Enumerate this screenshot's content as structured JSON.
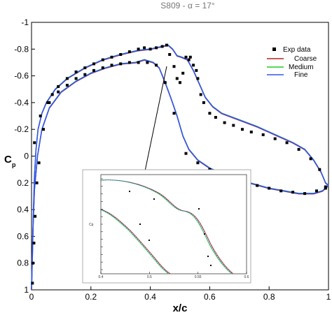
{
  "chart_data": {
    "type": "line",
    "title": "S809 -   α = 17°",
    "xlabel": "x/c",
    "ylabel": "Cp",
    "ylabel_main": "C",
    "ylabel_sub": "p",
    "xlim": [
      0,
      1
    ],
    "ylim": [
      -1,
      1
    ],
    "y_inverted": true,
    "x_ticks": [
      "0",
      "0.2",
      "0.4",
      "0.6",
      "0.8",
      "1"
    ],
    "y_ticks": [
      "-1",
      "-0.8",
      "-0.6",
      "-0.4",
      "-0.2",
      "0",
      "0.2",
      "0.4",
      "0.6",
      "0.8",
      "1"
    ],
    "legend_position": "top-right",
    "legend": [
      {
        "name": "Exp data",
        "color": "#000000",
        "marker": "square"
      },
      {
        "name": "Coarse",
        "color": "#b22222",
        "marker": "line"
      },
      {
        "name": "Medium",
        "color": "#22cc22",
        "marker": "line"
      },
      {
        "name": "Fine",
        "color": "#3355ee",
        "marker": "line"
      }
    ],
    "series": [
      {
        "name": "Exp data",
        "suction_points": [
          [
            0.003,
            0.95
          ],
          [
            0.005,
            0.8
          ],
          [
            0.008,
            0.65
          ],
          [
            0.012,
            0.45
          ],
          [
            0.018,
            0.2
          ],
          [
            0.025,
            0.05
          ],
          [
            0.04,
            -0.2
          ],
          [
            0.055,
            -0.4
          ],
          [
            0.07,
            -0.46
          ],
          [
            0.09,
            -0.52
          ],
          [
            0.12,
            -0.58
          ],
          [
            0.15,
            -0.63
          ],
          [
            0.18,
            -0.66
          ],
          [
            0.21,
            -0.69
          ],
          [
            0.24,
            -0.72
          ],
          [
            0.27,
            -0.74
          ],
          [
            0.3,
            -0.76
          ],
          [
            0.33,
            -0.78
          ],
          [
            0.36,
            -0.8
          ],
          [
            0.38,
            -0.81
          ],
          [
            0.4,
            -0.8
          ],
          [
            0.42,
            -0.81
          ],
          [
            0.44,
            -0.82
          ],
          [
            0.455,
            -0.83
          ],
          [
            0.465,
            -0.76
          ],
          [
            0.48,
            -0.67
          ],
          [
            0.49,
            -0.58
          ],
          [
            0.5,
            -0.55
          ],
          [
            0.51,
            -0.62
          ],
          [
            0.52,
            -0.74
          ],
          [
            0.53,
            -0.72
          ],
          [
            0.535,
            -0.74
          ],
          [
            0.545,
            -0.68
          ],
          [
            0.555,
            -0.64
          ],
          [
            0.56,
            -0.58
          ],
          [
            0.57,
            -0.46
          ],
          [
            0.58,
            -0.4
          ],
          [
            0.6,
            -0.32
          ],
          [
            0.62,
            -0.29
          ],
          [
            0.65,
            -0.25
          ],
          [
            0.68,
            -0.23
          ],
          [
            0.71,
            -0.2
          ],
          [
            0.74,
            -0.18
          ],
          [
            0.78,
            -0.16
          ],
          [
            0.82,
            -0.13
          ],
          [
            0.86,
            -0.1
          ],
          [
            0.9,
            -0.05
          ],
          [
            0.94,
            0.02
          ],
          [
            0.97,
            0.1
          ],
          [
            0.99,
            0.23
          ]
        ],
        "pressure_points": [
          [
            0.01,
            -0.1
          ],
          [
            0.03,
            -0.3
          ],
          [
            0.06,
            -0.4
          ],
          [
            0.09,
            -0.48
          ],
          [
            0.12,
            -0.53
          ],
          [
            0.15,
            -0.58
          ],
          [
            0.18,
            -0.61
          ],
          [
            0.21,
            -0.64
          ],
          [
            0.24,
            -0.66
          ],
          [
            0.27,
            -0.68
          ],
          [
            0.3,
            -0.69
          ],
          [
            0.33,
            -0.7
          ],
          [
            0.36,
            -0.7
          ],
          [
            0.39,
            -0.7
          ],
          [
            0.42,
            -0.68
          ],
          [
            0.45,
            -0.55
          ],
          [
            0.48,
            -0.32
          ],
          [
            0.52,
            -0.02
          ],
          [
            0.56,
            0.05
          ],
          [
            0.6,
            0.1
          ],
          [
            0.64,
            0.14
          ],
          [
            0.68,
            0.17
          ],
          [
            0.72,
            0.2
          ],
          [
            0.76,
            0.22
          ],
          [
            0.8,
            0.24
          ],
          [
            0.84,
            0.26
          ],
          [
            0.88,
            0.27
          ],
          [
            0.92,
            0.28
          ],
          [
            0.96,
            0.26
          ],
          [
            0.99,
            0.24
          ]
        ]
      },
      {
        "name": "Fine",
        "color": "#3355ee",
        "suction_curve": [
          [
            0.0,
            1.0
          ],
          [
            0.003,
            0.75
          ],
          [
            0.006,
            0.45
          ],
          [
            0.01,
            0.15
          ],
          [
            0.015,
            -0.05
          ],
          [
            0.022,
            -0.2
          ],
          [
            0.035,
            -0.32
          ],
          [
            0.05,
            -0.4
          ],
          [
            0.08,
            -0.5
          ],
          [
            0.12,
            -0.58
          ],
          [
            0.18,
            -0.66
          ],
          [
            0.24,
            -0.72
          ],
          [
            0.3,
            -0.76
          ],
          [
            0.36,
            -0.79
          ],
          [
            0.4,
            -0.8
          ],
          [
            0.44,
            -0.82
          ],
          [
            0.46,
            -0.83
          ],
          [
            0.475,
            -0.8
          ],
          [
            0.49,
            -0.75
          ],
          [
            0.505,
            -0.74
          ],
          [
            0.525,
            -0.72
          ],
          [
            0.545,
            -0.64
          ],
          [
            0.565,
            -0.54
          ],
          [
            0.585,
            -0.44
          ],
          [
            0.61,
            -0.37
          ],
          [
            0.64,
            -0.32
          ],
          [
            0.7,
            -0.27
          ],
          [
            0.76,
            -0.22
          ],
          [
            0.82,
            -0.16
          ],
          [
            0.88,
            -0.1
          ],
          [
            0.92,
            -0.05
          ],
          [
            0.95,
            0.03
          ],
          [
            0.975,
            0.12
          ],
          [
            0.99,
            0.2
          ],
          [
            1.0,
            0.22
          ]
        ],
        "pressure_curve": [
          [
            0.0,
            1.0
          ],
          [
            0.004,
            0.6
          ],
          [
            0.01,
            0.25
          ],
          [
            0.02,
            0.0
          ],
          [
            0.035,
            -0.2
          ],
          [
            0.06,
            -0.36
          ],
          [
            0.1,
            -0.48
          ],
          [
            0.15,
            -0.56
          ],
          [
            0.2,
            -0.62
          ],
          [
            0.25,
            -0.66
          ],
          [
            0.3,
            -0.69
          ],
          [
            0.35,
            -0.7
          ],
          [
            0.38,
            -0.72
          ],
          [
            0.41,
            -0.7
          ],
          [
            0.43,
            -0.66
          ],
          [
            0.45,
            -0.55
          ],
          [
            0.47,
            -0.43
          ],
          [
            0.49,
            -0.3
          ],
          [
            0.51,
            -0.15
          ],
          [
            0.53,
            -0.05
          ],
          [
            0.56,
            0.03
          ],
          [
            0.6,
            0.09
          ],
          [
            0.65,
            0.14
          ],
          [
            0.7,
            0.18
          ],
          [
            0.75,
            0.21
          ],
          [
            0.8,
            0.24
          ],
          [
            0.85,
            0.26
          ],
          [
            0.9,
            0.28
          ],
          [
            0.95,
            0.28
          ],
          [
            0.98,
            0.26
          ],
          [
            1.0,
            0.22
          ]
        ]
      },
      {
        "name": "Coarse",
        "color": "#b22222"
      },
      {
        "name": "Medium",
        "color": "#22cc22"
      }
    ],
    "annotation": "arrow from suction peak region to zoomed inset",
    "inset": {
      "x_ticks": [
        "0.4",
        "0.5",
        "0.55",
        "0.6"
      ],
      "ylabel": "Cp"
    }
  }
}
